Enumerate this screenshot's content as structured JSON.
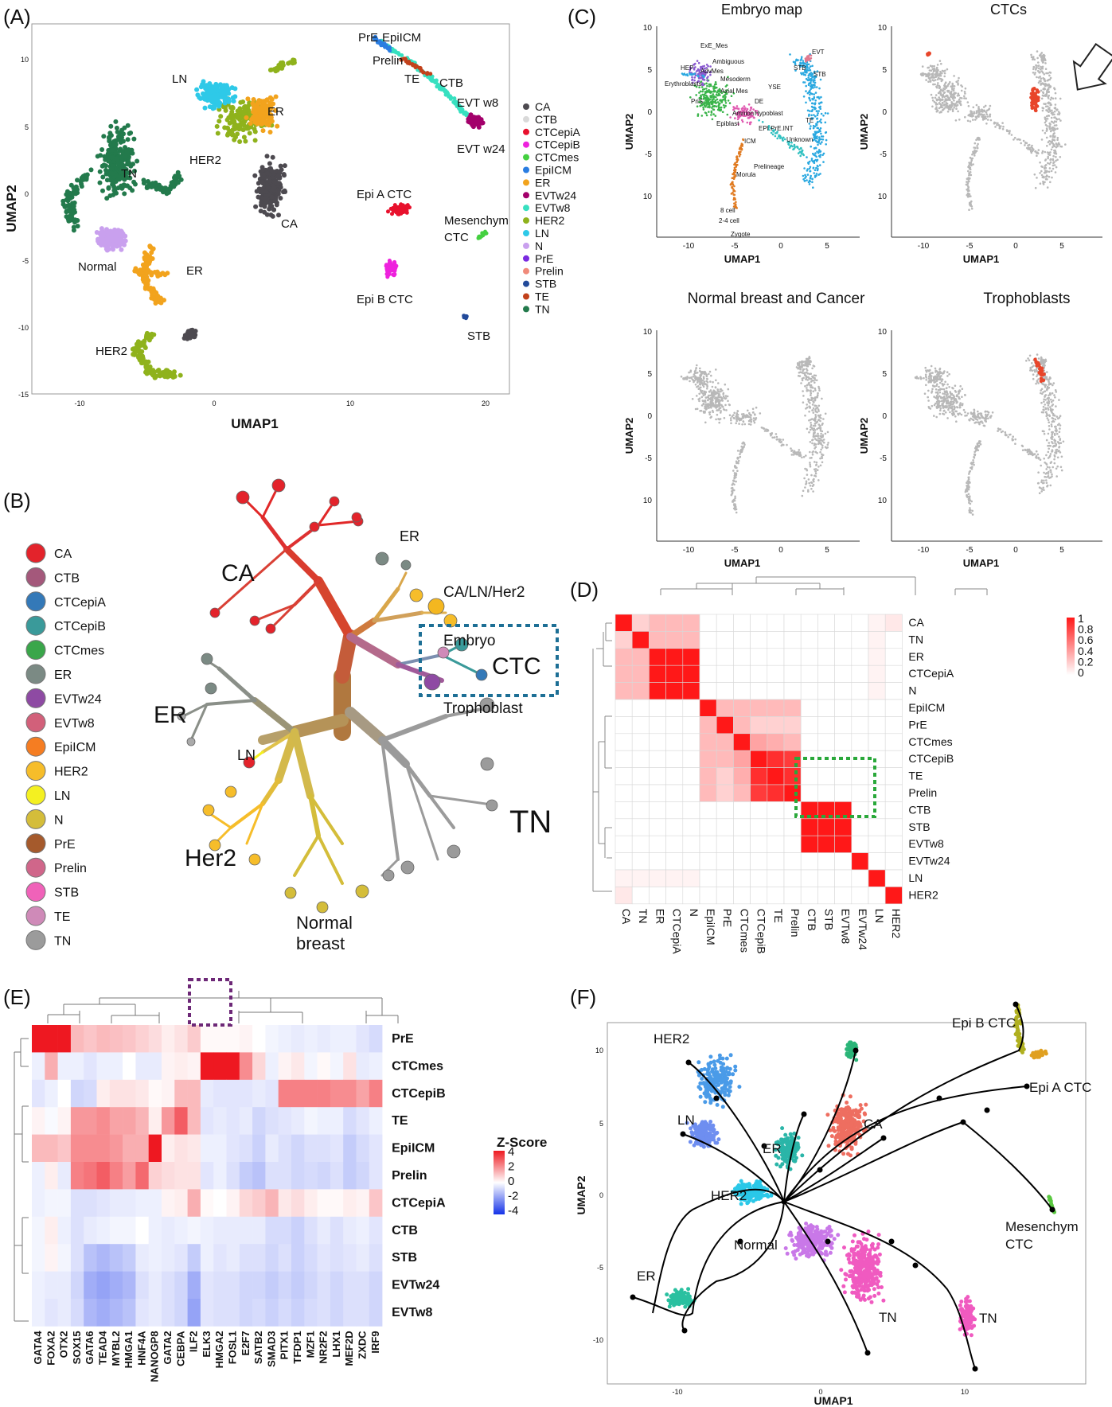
{
  "panels": {
    "a": {
      "letter": "(A)",
      "xlabel": "UMAP1",
      "ylabel": "UMAP2",
      "xticks": [
        "-10",
        "0",
        "10",
        "20"
      ],
      "yticks": [
        "10",
        "5",
        "0",
        "-5",
        "-10",
        "-15"
      ],
      "labels": [
        "PrE",
        "EpiICM",
        "Prelin",
        "TE",
        "CTB",
        "EVT w8",
        "EVT w24",
        "LN",
        "ER",
        "TN",
        "HER2",
        "CA",
        "Normal",
        "ER",
        "HER2",
        "Epi A CTC",
        "Mesenchym",
        "CTC",
        "Epi B CTC",
        "STB"
      ],
      "legend": [
        {
          "name": "CA",
          "color": "#4d4a50"
        },
        {
          "name": "CTB",
          "color": "#d9d9d9"
        },
        {
          "name": "CTCepiA",
          "color": "#e8112d"
        },
        {
          "name": "CTCepiB",
          "color": "#ee22dd"
        },
        {
          "name": "CTCmes",
          "color": "#44d040"
        },
        {
          "name": "EpiICM",
          "color": "#2a7de1"
        },
        {
          "name": "ER",
          "color": "#f2a31d"
        },
        {
          "name": "EVTw24",
          "color": "#a3006b"
        },
        {
          "name": "EVTw8",
          "color": "#37e0c0"
        },
        {
          "name": "HER2",
          "color": "#8fb21c"
        },
        {
          "name": "LN",
          "color": "#2ec9e8"
        },
        {
          "name": "N",
          "color": "#c9a0ee"
        },
        {
          "name": "PrE",
          "color": "#7a2be0"
        },
        {
          "name": "Prelin",
          "color": "#f08a7a"
        },
        {
          "name": "STB",
          "color": "#224a9a"
        },
        {
          "name": "TE",
          "color": "#c2411b"
        },
        {
          "name": "TN",
          "color": "#237a4c"
        }
      ]
    },
    "b": {
      "letter": "(B)",
      "legend": [
        {
          "name": "CA",
          "color": "#e3232b"
        },
        {
          "name": "CTB",
          "color": "#a4587b"
        },
        {
          "name": "CTCepiA",
          "color": "#3479b8"
        },
        {
          "name": "CTCepiB",
          "color": "#3a9a9a"
        },
        {
          "name": "CTCmes",
          "color": "#3aa64a"
        },
        {
          "name": "ER",
          "color": "#7b8a84"
        },
        {
          "name": "EVTw24",
          "color": "#8e4aa3"
        },
        {
          "name": "EVTw8",
          "color": "#d2607a"
        },
        {
          "name": "EpiICM",
          "color": "#f57d22"
        },
        {
          "name": "HER2",
          "color": "#f6bd2a"
        },
        {
          "name": "LN",
          "color": "#f4f021"
        },
        {
          "name": "N",
          "color": "#d4bd3a"
        },
        {
          "name": "PrE",
          "color": "#a55a2c"
        },
        {
          "name": "Prelin",
          "color": "#d0668a"
        },
        {
          "name": "STB",
          "color": "#f062b9"
        },
        {
          "name": "TE",
          "color": "#cf8ab8"
        },
        {
          "name": "TN",
          "color": "#9b9b9b"
        }
      ],
      "labels": {
        "ca": "CA",
        "er_top": "ER",
        "ca_ln_her2": "CA/LN/Her2",
        "embryo": "Embryo",
        "ctc": "CTC",
        "trophoblast": "Trophoblast",
        "er_left": "ER",
        "ln": "LN",
        "her2": "Her2",
        "tn": "TN",
        "normal": "Normal",
        "breast": "breast"
      }
    },
    "c": {
      "letter": "(C)",
      "titles": [
        "Embryo map",
        "CTCs",
        "Normal breast and Cancer",
        "Trophoblasts"
      ],
      "xlabel": "UMAP1",
      "ylabel": "UMAP2",
      "xticks": [
        "-10",
        "-5",
        "0",
        "5"
      ],
      "yticks": [
        "10",
        "5",
        "0",
        "-5",
        "10"
      ],
      "embryo_labels": [
        "ExE_Mes",
        "Ambiguous",
        "HEP",
        "AdvMes",
        "Mesoderm",
        "Erythroblasts",
        "Axial Mes",
        "YSE",
        "STB",
        "EVT",
        "STB",
        "DE",
        "PriS",
        "Amnion",
        "Hypoblast",
        "Epiblast",
        "EPI.PrE.INT",
        "TE",
        "ICM",
        "Unknown",
        "Prelineage",
        "Morula",
        "8 cell",
        "2-4 cell",
        "Zygote"
      ]
    },
    "d": {
      "letter": "(D)",
      "rows": [
        "CA",
        "TN",
        "ER",
        "CTCepiA",
        "N",
        "EpiICM",
        "PrE",
        "CTCmes",
        "CTCepiB",
        "TE",
        "Prelin",
        "CTB",
        "STB",
        "EVTw8",
        "EVTw24",
        "LN",
        "HER2"
      ],
      "matrix": [
        [
          1.0,
          0.2,
          0.3,
          0.3,
          0.3,
          0,
          0,
          0,
          0,
          0,
          0,
          0,
          0,
          0,
          0,
          0.05,
          0.1
        ],
        [
          0.2,
          1.0,
          0.3,
          0.3,
          0.3,
          0,
          0,
          0,
          0,
          0,
          0,
          0,
          0,
          0,
          0,
          0.05,
          0
        ],
        [
          0.3,
          0.3,
          1.0,
          1.0,
          1.0,
          0,
          0,
          0,
          0,
          0,
          0,
          0,
          0,
          0,
          0,
          0.05,
          0
        ],
        [
          0.3,
          0.3,
          1.0,
          1.0,
          1.0,
          0,
          0,
          0,
          0,
          0,
          0,
          0,
          0,
          0,
          0,
          0.05,
          0
        ],
        [
          0.3,
          0.3,
          1.0,
          1.0,
          1.0,
          0,
          0,
          0,
          0,
          0,
          0,
          0,
          0,
          0,
          0,
          0.05,
          0
        ],
        [
          0,
          0,
          0,
          0,
          0,
          1.0,
          0.3,
          0.3,
          0.3,
          0.3,
          0.3,
          0,
          0,
          0,
          0,
          0,
          0
        ],
        [
          0,
          0,
          0,
          0,
          0,
          0.3,
          1.0,
          0.3,
          0.2,
          0.2,
          0.2,
          0,
          0,
          0,
          0,
          0,
          0
        ],
        [
          0,
          0,
          0,
          0,
          0,
          0.3,
          0.3,
          1.0,
          0.4,
          0.35,
          0.3,
          0,
          0,
          0,
          0,
          0,
          0
        ],
        [
          0,
          0,
          0,
          0,
          0,
          0.3,
          0.3,
          0.4,
          1.0,
          0.9,
          0.85,
          0,
          0,
          0,
          0,
          0,
          0
        ],
        [
          0,
          0,
          0,
          0,
          0,
          0.3,
          0.2,
          0.35,
          0.9,
          1.0,
          0.9,
          0,
          0,
          0,
          0,
          0,
          0
        ],
        [
          0,
          0,
          0,
          0,
          0,
          0.3,
          0.2,
          0.3,
          0.85,
          0.9,
          1.0,
          0,
          0,
          0,
          0,
          0,
          0
        ],
        [
          0,
          0,
          0,
          0,
          0,
          0,
          0,
          0,
          0,
          0,
          0,
          1.0,
          1.0,
          1.0,
          0,
          0,
          0
        ],
        [
          0,
          0,
          0,
          0,
          0,
          0,
          0,
          0,
          0,
          0,
          0,
          1.0,
          1.0,
          1.0,
          0,
          0,
          0
        ],
        [
          0,
          0,
          0,
          0,
          0,
          0,
          0,
          0,
          0,
          0,
          0,
          1.0,
          1.0,
          1.0,
          0,
          0,
          0
        ],
        [
          0,
          0,
          0,
          0,
          0,
          0,
          0,
          0,
          0,
          0,
          0,
          0,
          0,
          0,
          1.0,
          0,
          0
        ],
        [
          0.05,
          0.05,
          0.05,
          0.05,
          0.05,
          0,
          0,
          0,
          0,
          0,
          0,
          0,
          0,
          0,
          0,
          1.0,
          0
        ],
        [
          0.1,
          0,
          0,
          0,
          0,
          0,
          0,
          0,
          0,
          0,
          0,
          0,
          0,
          0,
          0,
          0,
          1.0
        ]
      ],
      "scale_ticks": [
        "1",
        "0.8",
        "0.6",
        "0.4",
        "0.2",
        "0"
      ]
    },
    "e": {
      "letter": "(E)",
      "rows": [
        "PrE",
        "CTCmes",
        "CTCepiB",
        "TE",
        "EpiICM",
        "Prelin",
        "CTCepiA",
        "CTB",
        "STB",
        "EVTw24",
        "EVTw8"
      ],
      "cols": [
        "GATA4",
        "FOXA2",
        "OTX2",
        "SOX15",
        "GATA6",
        "TEAD4",
        "MYBL2",
        "HMGA1",
        "HNF4A",
        "NANOGP8",
        "GATA2",
        "CEBPA",
        "ILF2",
        "ELK3",
        "HMGA2",
        "FOSL1",
        "E2F7",
        "SATB2",
        "SMAD3",
        "PITX1",
        "TFDP1",
        "MZF1",
        "NR2F2",
        "LHX1",
        "MEF2D",
        "ZXDC",
        "IRF9"
      ],
      "matrix": [
        [
          4,
          4,
          4,
          1.2,
          1,
          1.2,
          1.1,
          1,
          0.8,
          0.6,
          0.3,
          0.5,
          0.9,
          0.1,
          0.1,
          0.1,
          0.2,
          0,
          -0.2,
          -0.3,
          -0.4,
          -0.3,
          -0.4,
          -0.3,
          -0.3,
          -0.5,
          -0.7
        ],
        [
          -0.3,
          1.4,
          -0.3,
          -0.3,
          -0.5,
          -0.3,
          -0.3,
          0,
          -0.4,
          -0.4,
          0.2,
          0.3,
          0.2,
          4,
          4,
          4,
          2,
          0.7,
          -0.3,
          0.2,
          0.4,
          -0.2,
          0.1,
          -0.2,
          0.5,
          -0.4,
          -0.3
        ],
        [
          -0.5,
          -0.3,
          0,
          -0.8,
          -0.7,
          0.3,
          0.5,
          0.5,
          0.4,
          0.1,
          0.2,
          1.2,
          1.2,
          -0.4,
          -0.5,
          -0.5,
          -0.5,
          -0.4,
          -0.5,
          2.2,
          2.2,
          2.2,
          2.2,
          2,
          2,
          1.6,
          2.2
        ],
        [
          0.2,
          -0.1,
          0.2,
          1.8,
          1.8,
          2,
          1.6,
          1.6,
          1.3,
          0.3,
          1.8,
          2.8,
          1.2,
          -0.5,
          -0.4,
          -0.5,
          -0.4,
          -0.8,
          -0.6,
          -0.5,
          -0.4,
          -0.2,
          -0.3,
          -0.3,
          -0.7,
          -0.5,
          -0.3
        ],
        [
          1.2,
          1.2,
          1,
          2,
          2,
          2,
          1.8,
          1.4,
          1.4,
          4,
          0.3,
          0.5,
          0.4,
          -0.3,
          -0.3,
          -0.5,
          -0.6,
          -0.9,
          -0.4,
          -0.6,
          -0.8,
          -0.6,
          -0.6,
          -0.5,
          -1,
          -0.7,
          -0.5
        ],
        [
          -0.3,
          0.3,
          -0.4,
          2.2,
          2.4,
          2.8,
          2.2,
          1.7,
          2.6,
          0.8,
          0.6,
          0.5,
          0.5,
          -0.5,
          -0.3,
          -0.6,
          -1,
          -1.2,
          -0.6,
          -0.6,
          -0.8,
          -0.7,
          -0.8,
          -0.6,
          -1,
          -0.8,
          -0.5
        ],
        [
          -0.3,
          -0.2,
          -0.2,
          -0.6,
          -0.6,
          -0.5,
          -0.4,
          -0.4,
          -0.3,
          -0.3,
          0.2,
          0.3,
          1.4,
          0.1,
          0,
          0.2,
          0.7,
          0.9,
          1.3,
          0.4,
          0.6,
          0.3,
          0.1,
          0.1,
          0.3,
          0.2,
          1
        ],
        [
          -0.2,
          0.3,
          -0.3,
          -0.6,
          -0.4,
          -0.3,
          -0.2,
          -0.2,
          0,
          -0.3,
          -0.4,
          -0.3,
          -0.2,
          -0.3,
          -0.4,
          -0.4,
          -0.4,
          -0.4,
          -0.7,
          -0.7,
          -0.9,
          -0.6,
          -0.4,
          -0.6,
          -0.4,
          -0.3,
          -0.5
        ],
        [
          -0.2,
          0.2,
          -0.2,
          -0.6,
          -1.2,
          -1.4,
          -1.2,
          -1,
          -0.4,
          -0.3,
          -0.4,
          -0.5,
          -1,
          -0.3,
          -0.5,
          -0.4,
          -0.6,
          -0.6,
          -0.8,
          -0.6,
          -0.9,
          -0.7,
          -0.5,
          -0.6,
          -0.5,
          -0.4,
          -0.6
        ],
        [
          -0.3,
          -0.4,
          -0.4,
          -0.8,
          -1.6,
          -1.8,
          -1.6,
          -1.4,
          -0.6,
          -0.4,
          -0.6,
          -0.8,
          -1.6,
          -0.5,
          -0.6,
          -0.6,
          -0.8,
          -0.8,
          -1,
          -0.8,
          -1,
          -0.8,
          -0.6,
          -0.8,
          -0.6,
          -0.6,
          -0.8
        ],
        [
          -0.3,
          -0.5,
          -0.4,
          -0.7,
          -1.4,
          -1.6,
          -1.4,
          -1.2,
          -0.5,
          -0.4,
          -0.6,
          -0.8,
          -1.8,
          -0.5,
          -0.6,
          -0.6,
          -0.8,
          -0.7,
          -0.9,
          -0.7,
          -0.9,
          -0.7,
          -0.6,
          -0.8,
          -0.6,
          -0.6,
          -0.8
        ]
      ],
      "scale_title": "Z-Score",
      "scale_ticks": [
        "4",
        "2",
        "0",
        "-2",
        "-4"
      ]
    },
    "f": {
      "letter": "(F)",
      "xlabel": "UMAP1",
      "ylabel": "UMAP2",
      "xticks": [
        "-10",
        "0",
        "10"
      ],
      "yticks": [
        "10",
        "5",
        "0",
        "-5",
        "-10"
      ],
      "labels": [
        "HER2",
        "LN",
        "ER",
        "CA",
        "HER2",
        "Normal",
        "ER",
        "TN",
        "TN",
        "Epi B CTC",
        "Epi A CTC",
        "Mesenchym",
        "CTC"
      ]
    }
  }
}
